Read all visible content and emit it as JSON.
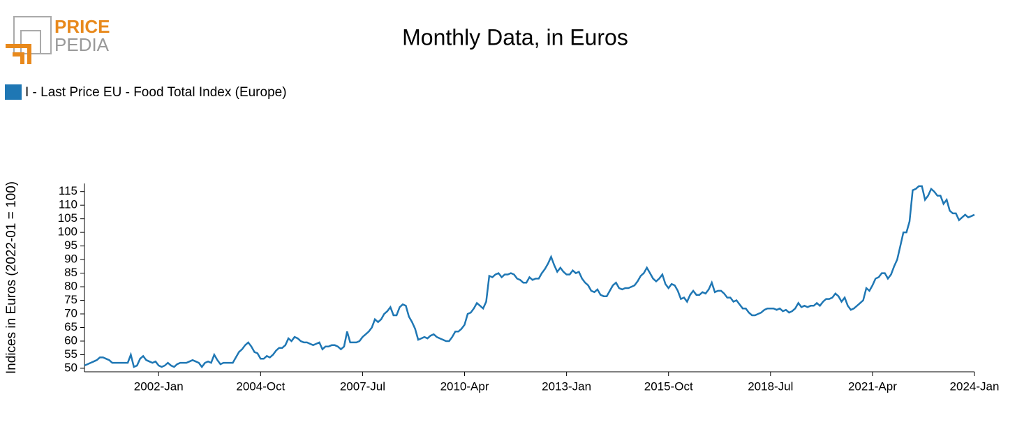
{
  "logo": {
    "line1": "PRICE",
    "line2": "PEDIA"
  },
  "chart_data": {
    "type": "line",
    "title": "Monthly Data, in Euros",
    "y_label": "Indices in Euros (2022-01 = 100)",
    "ylim": [
      48.7,
      118
    ],
    "yticks": [
      50,
      55,
      60,
      65,
      70,
      75,
      80,
      85,
      90,
      95,
      100,
      105,
      110,
      115
    ],
    "legend": "top-left",
    "categories": [
      null,
      null,
      null,
      null,
      null,
      null,
      null,
      null,
      null,
      null,
      null,
      null,
      null,
      null,
      null,
      null,
      null,
      null,
      null,
      null,
      null,
      null,
      null,
      null,
      "2002-Jan",
      null,
      null,
      null,
      null,
      null,
      null,
      null,
      null,
      null,
      null,
      null,
      null,
      null,
      null,
      null,
      null,
      null,
      null,
      null,
      null,
      null,
      null,
      null,
      null,
      null,
      null,
      null,
      null,
      null,
      null,
      null,
      null,
      "2004-Oct",
      null,
      null,
      null,
      null,
      null,
      null,
      null,
      null,
      null,
      null,
      null,
      null,
      null,
      null,
      null,
      null,
      null,
      null,
      null,
      null,
      null,
      null,
      null,
      null,
      null,
      null,
      null,
      null,
      null,
      null,
      null,
      null,
      "2007-Jul",
      null,
      null,
      null,
      null,
      null,
      null,
      null,
      null,
      null,
      null,
      null,
      null,
      null,
      null,
      null,
      null,
      null,
      null,
      null,
      null,
      null,
      null,
      null,
      null,
      null,
      null,
      null,
      null,
      null,
      null,
      null,
      null,
      "2010-Apr",
      null,
      null,
      null,
      null,
      null,
      null,
      null,
      null,
      null,
      null,
      null,
      null,
      null,
      null,
      null,
      null,
      null,
      null,
      null,
      null,
      null,
      null,
      null,
      null,
      null,
      null,
      null,
      null,
      null,
      null,
      null,
      null,
      "2013-Jan",
      null,
      null,
      null,
      null,
      null,
      null,
      null,
      null,
      null,
      null,
      null,
      null,
      null,
      null,
      null,
      null,
      null,
      null,
      null,
      null,
      null,
      null,
      null,
      null,
      null,
      null,
      null,
      null,
      null,
      null,
      null,
      null,
      "2015-Oct",
      null,
      null,
      null,
      null,
      null,
      null,
      null,
      null,
      null,
      null,
      null,
      null,
      null,
      null,
      null,
      null,
      null,
      null,
      null,
      null,
      null,
      null,
      null,
      null,
      null,
      null,
      null,
      null,
      null,
      null,
      null,
      null,
      "2018-Jul",
      null,
      null,
      null,
      null,
      null,
      null,
      null,
      null,
      null,
      null,
      null,
      null,
      null,
      null,
      null,
      null,
      null,
      null,
      null,
      null,
      null,
      null,
      null,
      null,
      null,
      null,
      null,
      null,
      null,
      null,
      null,
      null,
      "2021-Apr",
      null,
      null,
      null,
      null,
      null,
      null,
      null,
      null,
      null,
      null,
      null,
      null,
      null,
      null,
      null,
      null,
      null,
      null,
      null,
      null,
      null,
      null,
      null,
      null,
      null,
      null,
      null,
      null,
      null,
      null,
      null,
      null,
      "2024-Jan"
    ],
    "series": [
      {
        "name": "I - Last Price EU - Food Total Index (Europe)",
        "color": "#1f77b4",
        "values": [
          51,
          51.5,
          52,
          52.5,
          53,
          54,
          54,
          53.5,
          53,
          52,
          52,
          52,
          52,
          52,
          52,
          55,
          50.5,
          51,
          53.5,
          54.5,
          53,
          52.5,
          52,
          52.5,
          51,
          50.5,
          51,
          52,
          51,
          50.5,
          51.5,
          52,
          52,
          52,
          52.5,
          53,
          52.5,
          52,
          50.5,
          52,
          52.5,
          52,
          55,
          53,
          51.5,
          52,
          52,
          52,
          52,
          54,
          56,
          57,
          58.5,
          59.5,
          58,
          56,
          55.5,
          53.5,
          53.5,
          54.5,
          54,
          55,
          56.5,
          57.5,
          57.5,
          58.5,
          61,
          60,
          61.5,
          61,
          60,
          59.5,
          59.5,
          59,
          58.5,
          59,
          59.5,
          57,
          58,
          58,
          58.5,
          58.5,
          58,
          57,
          58,
          63.5,
          59.5,
          59.5,
          59.5,
          60,
          61.5,
          62.5,
          63.5,
          65,
          68,
          67,
          68,
          70,
          71,
          72.5,
          69.5,
          69.5,
          72.5,
          73.5,
          73,
          69,
          67,
          64.5,
          60.5,
          61,
          61.5,
          61,
          62,
          62.5,
          61.5,
          61,
          60.5,
          60,
          60,
          61.5,
          63.5,
          63.5,
          64.5,
          66,
          70,
          70.5,
          72,
          74,
          73,
          72,
          74.5,
          84,
          83.5,
          84.5,
          85,
          83.5,
          84.5,
          84.5,
          85,
          84.5,
          83,
          82.5,
          81.5,
          81.5,
          83.5,
          82.5,
          83,
          83,
          85,
          86.5,
          88.5,
          91,
          88,
          85.5,
          87,
          85.5,
          84.5,
          84.5,
          86,
          85,
          85.5,
          83,
          81.5,
          80.5,
          78.5,
          78,
          79,
          77,
          76.5,
          76.5,
          78.5,
          80.5,
          81.5,
          79.5,
          79,
          79.5,
          79.5,
          80,
          80.5,
          82,
          84,
          85,
          87,
          85,
          83,
          82,
          83,
          84.5,
          81,
          79.5,
          81,
          80.5,
          78.5,
          75.5,
          76,
          74.5,
          77,
          78.5,
          77,
          77,
          78,
          77.5,
          79,
          81.5,
          78,
          78.5,
          78.5,
          77.5,
          76,
          76,
          74.5,
          75,
          73.5,
          72,
          72,
          70.5,
          69.5,
          69.5,
          70,
          70.5,
          71.5,
          72,
          72,
          72,
          71.5,
          72,
          71,
          71.5,
          70.5,
          71,
          72,
          74,
          72.5,
          73,
          72.5,
          73,
          73,
          74,
          73,
          74.5,
          75.5,
          75.5,
          76,
          77.5,
          76.5,
          74.5,
          76,
          73,
          71.5,
          72,
          73,
          74,
          75,
          79.5,
          78.5,
          80.5,
          83,
          83.5,
          85,
          85,
          83,
          84.5,
          87.5,
          90,
          95,
          100,
          100,
          104,
          115.5,
          116,
          117,
          117,
          112,
          113.5,
          116,
          115,
          113.5,
          113.5,
          110.5,
          112,
          108,
          107,
          107,
          104.5,
          105.5,
          106.5,
          105.5,
          106,
          106.5
        ]
      }
    ]
  }
}
